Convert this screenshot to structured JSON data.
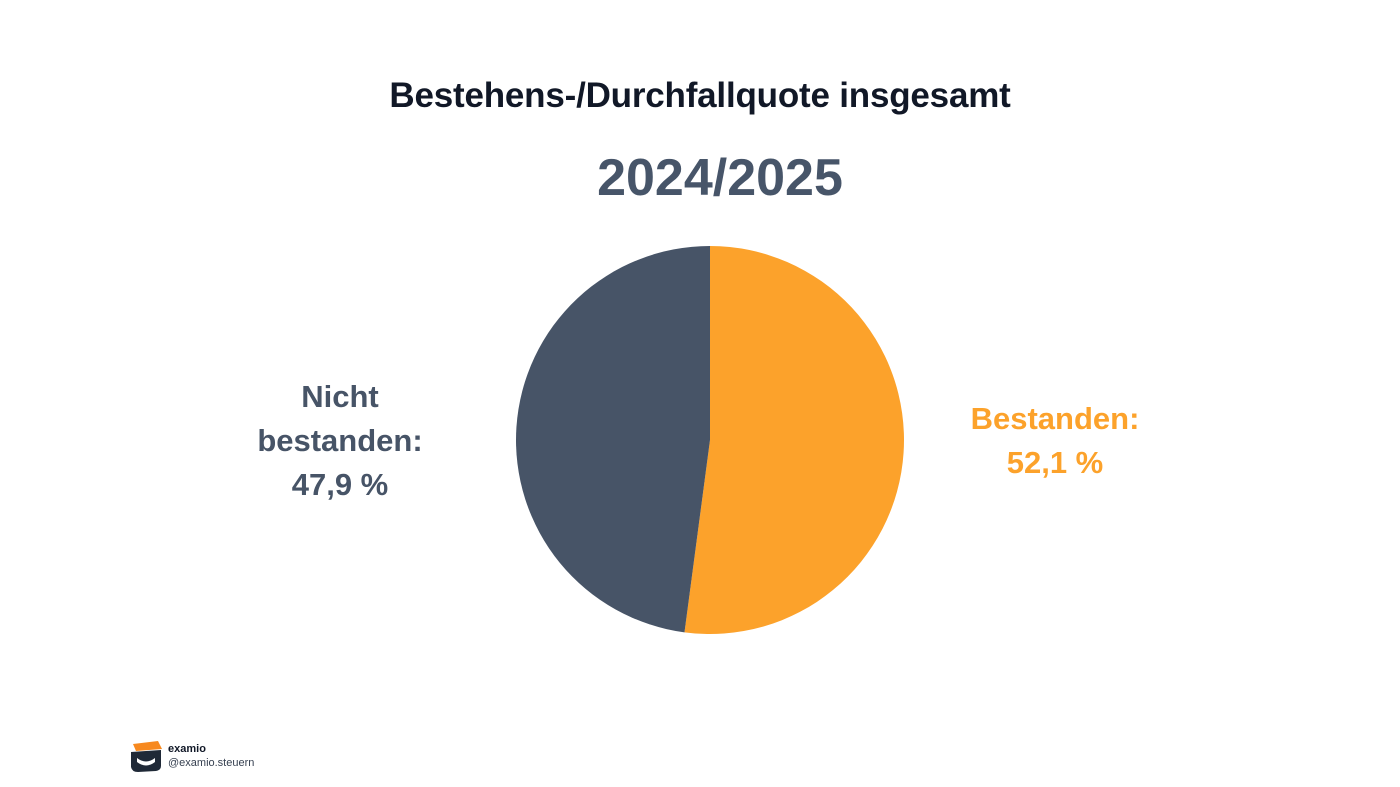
{
  "title": "Bestehens-/Durchfallquote insgesamt",
  "subtitle": "2024/2025",
  "colors": {
    "passed": "#fca22b",
    "failed": "#475467",
    "title": "#111827",
    "subtitle": "#475569"
  },
  "chart_data": {
    "type": "pie",
    "title": "Bestehens-/Durchfallquote insgesamt",
    "subtitle": "2024/2025",
    "slices": [
      {
        "label": "Bestanden:",
        "value": 52.1,
        "value_label": "52,1 %",
        "color": "#fca22b"
      },
      {
        "label": "Nicht bestanden:",
        "value": 47.9,
        "value_label": "47,9 %",
        "color": "#475467"
      }
    ],
    "start_angle_deg": 0,
    "direction": "clockwise",
    "legend": "none"
  },
  "labels": {
    "passed_name": "Bestanden:",
    "passed_value": "52,1 %",
    "failed_name": "Nicht bestanden:",
    "failed_value": "47,9 %"
  },
  "brand": {
    "name": "examio",
    "handle": "@examio.steuern",
    "logo_icon": "examio-logo-icon"
  }
}
